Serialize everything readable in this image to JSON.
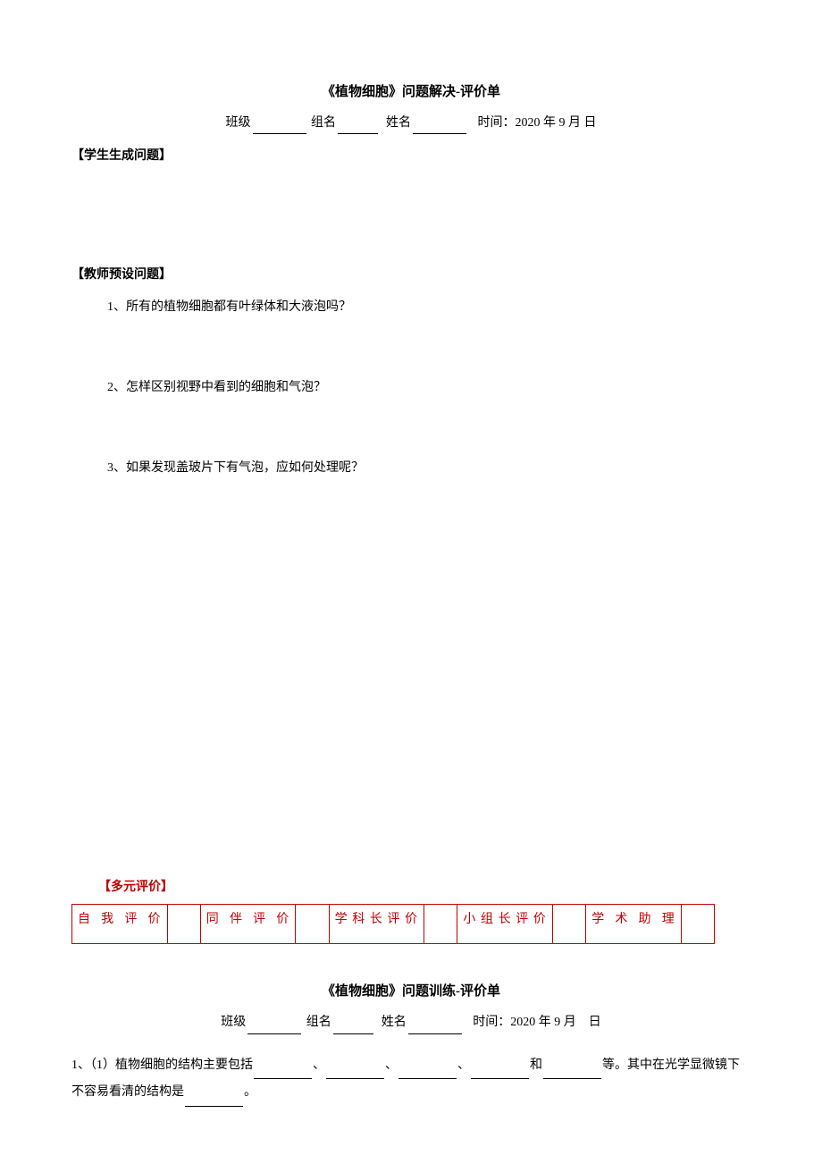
{
  "section1": {
    "title": "《植物细胞》问题解决-评价单",
    "form": {
      "class_label": "班级",
      "group_label": "组名",
      "name_label": "姓名",
      "time_label": "时间：",
      "time_value": "2020 年 9 月 日"
    },
    "student_header": "【学生生成问题】",
    "teacher_header": "【教师预设问题】",
    "questions": [
      "1、所有的植物细胞都有叶绿体和大液泡吗？",
      "2、怎样区别视野中看到的细胞和气泡？",
      "3、如果发现盖玻片下有气泡，应如何处理呢？"
    ],
    "eval_header": "【多元评价】",
    "eval_cols": [
      "自我评价",
      "同伴评价",
      "学科长评价",
      "小组长评价",
      "学术助理"
    ]
  },
  "section2": {
    "title": "《植物细胞》问题训练-评价单",
    "form": {
      "class_label": "班级",
      "group_label": "组名",
      "name_label": "姓名",
      "time_label": "时间：",
      "time_value": "2020 年 9 月　日"
    },
    "q1_part1": "1、（1）植物细胞的结构主要包括",
    "q1_part2": "和",
    "q1_part3": "等。其中在光学显微镜下不容易看清的结构是",
    "q1_part4": "。",
    "separator": "、"
  }
}
